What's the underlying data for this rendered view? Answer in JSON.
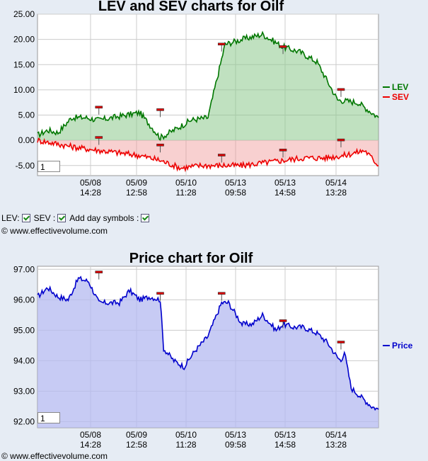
{
  "chart1": {
    "title": "LEV and SEV charts for Oilf",
    "zoom_value": "1",
    "yticks": [
      "25.00",
      "20.00",
      "15.00",
      "10.00",
      "5.00",
      "0.00",
      "-5.00"
    ],
    "xticks": [
      {
        "date": "05/08",
        "time": "14:28"
      },
      {
        "date": "05/09",
        "time": "12:58"
      },
      {
        "date": "05/10",
        "time": "11:28"
      },
      {
        "date": "05/13",
        "time": "09:58"
      },
      {
        "date": "05/13",
        "time": "14:58"
      },
      {
        "date": "05/14",
        "time": "13:28"
      }
    ],
    "legend": [
      {
        "label": "LEV",
        "color": "#007700"
      },
      {
        "label": "SEV",
        "color": "#ee0000"
      }
    ]
  },
  "controls": {
    "lev_label": "LEV:",
    "sev_label": "SEV :",
    "day_label": "Add day symbols :"
  },
  "copyright": "© www.effectivevolume.com",
  "chart2": {
    "title": "Price chart for Oilf",
    "zoom_value": "1",
    "yticks": [
      "97.00",
      "96.00",
      "95.00",
      "94.00",
      "93.00",
      "92.00"
    ],
    "xticks": [
      {
        "date": "05/08",
        "time": "14:28"
      },
      {
        "date": "05/09",
        "time": "12:58"
      },
      {
        "date": "05/10",
        "time": "11:28"
      },
      {
        "date": "05/13",
        "time": "09:58"
      },
      {
        "date": "05/13",
        "time": "14:58"
      },
      {
        "date": "05/14",
        "time": "13:28"
      }
    ],
    "legend": [
      {
        "label": "Price",
        "color": "#0000cc"
      }
    ]
  },
  "chart_data": [
    {
      "type": "area",
      "title": "LEV and SEV charts for Oilf",
      "ylim": [
        -7,
        25
      ],
      "grid": true,
      "legend_position": "right",
      "series": [
        {
          "name": "LEV",
          "color": "#007700",
          "x": [
            0,
            3,
            6,
            10,
            14,
            18,
            22,
            26,
            30,
            36,
            40,
            45,
            50,
            55,
            60,
            66,
            72,
            77,
            82,
            88,
            94,
            100
          ],
          "y": [
            1,
            2,
            1.5,
            4.5,
            4.5,
            4,
            4.5,
            5,
            5.5,
            0.5,
            2,
            4,
            4.5,
            19,
            20,
            21,
            18.5,
            17.5,
            15.5,
            8,
            7.5,
            4.5
          ]
        },
        {
          "name": "SEV",
          "color": "#ee0000",
          "x": [
            0,
            4,
            8,
            12,
            18,
            24,
            30,
            36,
            42,
            48,
            54,
            60,
            66,
            72,
            78,
            84,
            90,
            96,
            100
          ],
          "y": [
            0,
            -0.5,
            -1,
            -1.5,
            -2,
            -2.5,
            -3,
            -4,
            -5.5,
            -5,
            -5,
            -5,
            -4.5,
            -4,
            -3.5,
            -3.5,
            -3,
            -2,
            -5
          ]
        }
      ],
      "day_markers": {
        "LEV": [
          [
            18,
            6.5
          ],
          [
            36,
            6
          ],
          [
            54,
            19
          ],
          [
            72,
            18.5
          ],
          [
            89,
            10
          ]
        ],
        "SEV": [
          [
            18,
            0.5
          ],
          [
            36,
            -1
          ],
          [
            54,
            -3
          ],
          [
            72,
            -2
          ],
          [
            89,
            0
          ]
        ]
      }
    },
    {
      "type": "area",
      "title": "Price chart for Oilf",
      "ylim": [
        91.8,
        97.1
      ],
      "grid": true,
      "legend_position": "right",
      "series": [
        {
          "name": "Price",
          "color": "#0000cc",
          "x": [
            0,
            3,
            6,
            9,
            12,
            15,
            18,
            21,
            24,
            27,
            30,
            33,
            36,
            37,
            40,
            43,
            46,
            50,
            54,
            56,
            60,
            63,
            66,
            70,
            72,
            75,
            78,
            82,
            85,
            88,
            89,
            90,
            92,
            95,
            98,
            100
          ],
          "y": [
            96.1,
            96.4,
            96.1,
            96.0,
            96.7,
            96.6,
            95.9,
            95.9,
            95.9,
            96.3,
            96.0,
            96.1,
            96.0,
            94.4,
            94.0,
            93.8,
            94.3,
            94.8,
            95.9,
            95.9,
            95.2,
            95.2,
            95.5,
            95.0,
            95.2,
            95.1,
            95.1,
            94.9,
            94.6,
            94.1,
            94.0,
            94.3,
            93.1,
            92.8,
            92.5,
            92.4
          ]
        }
      ],
      "day_markers": {
        "Price": [
          [
            18,
            96.9
          ],
          [
            36,
            96.2
          ],
          [
            54,
            96.2
          ],
          [
            72,
            95.3
          ],
          [
            89,
            94.6
          ]
        ]
      }
    }
  ]
}
